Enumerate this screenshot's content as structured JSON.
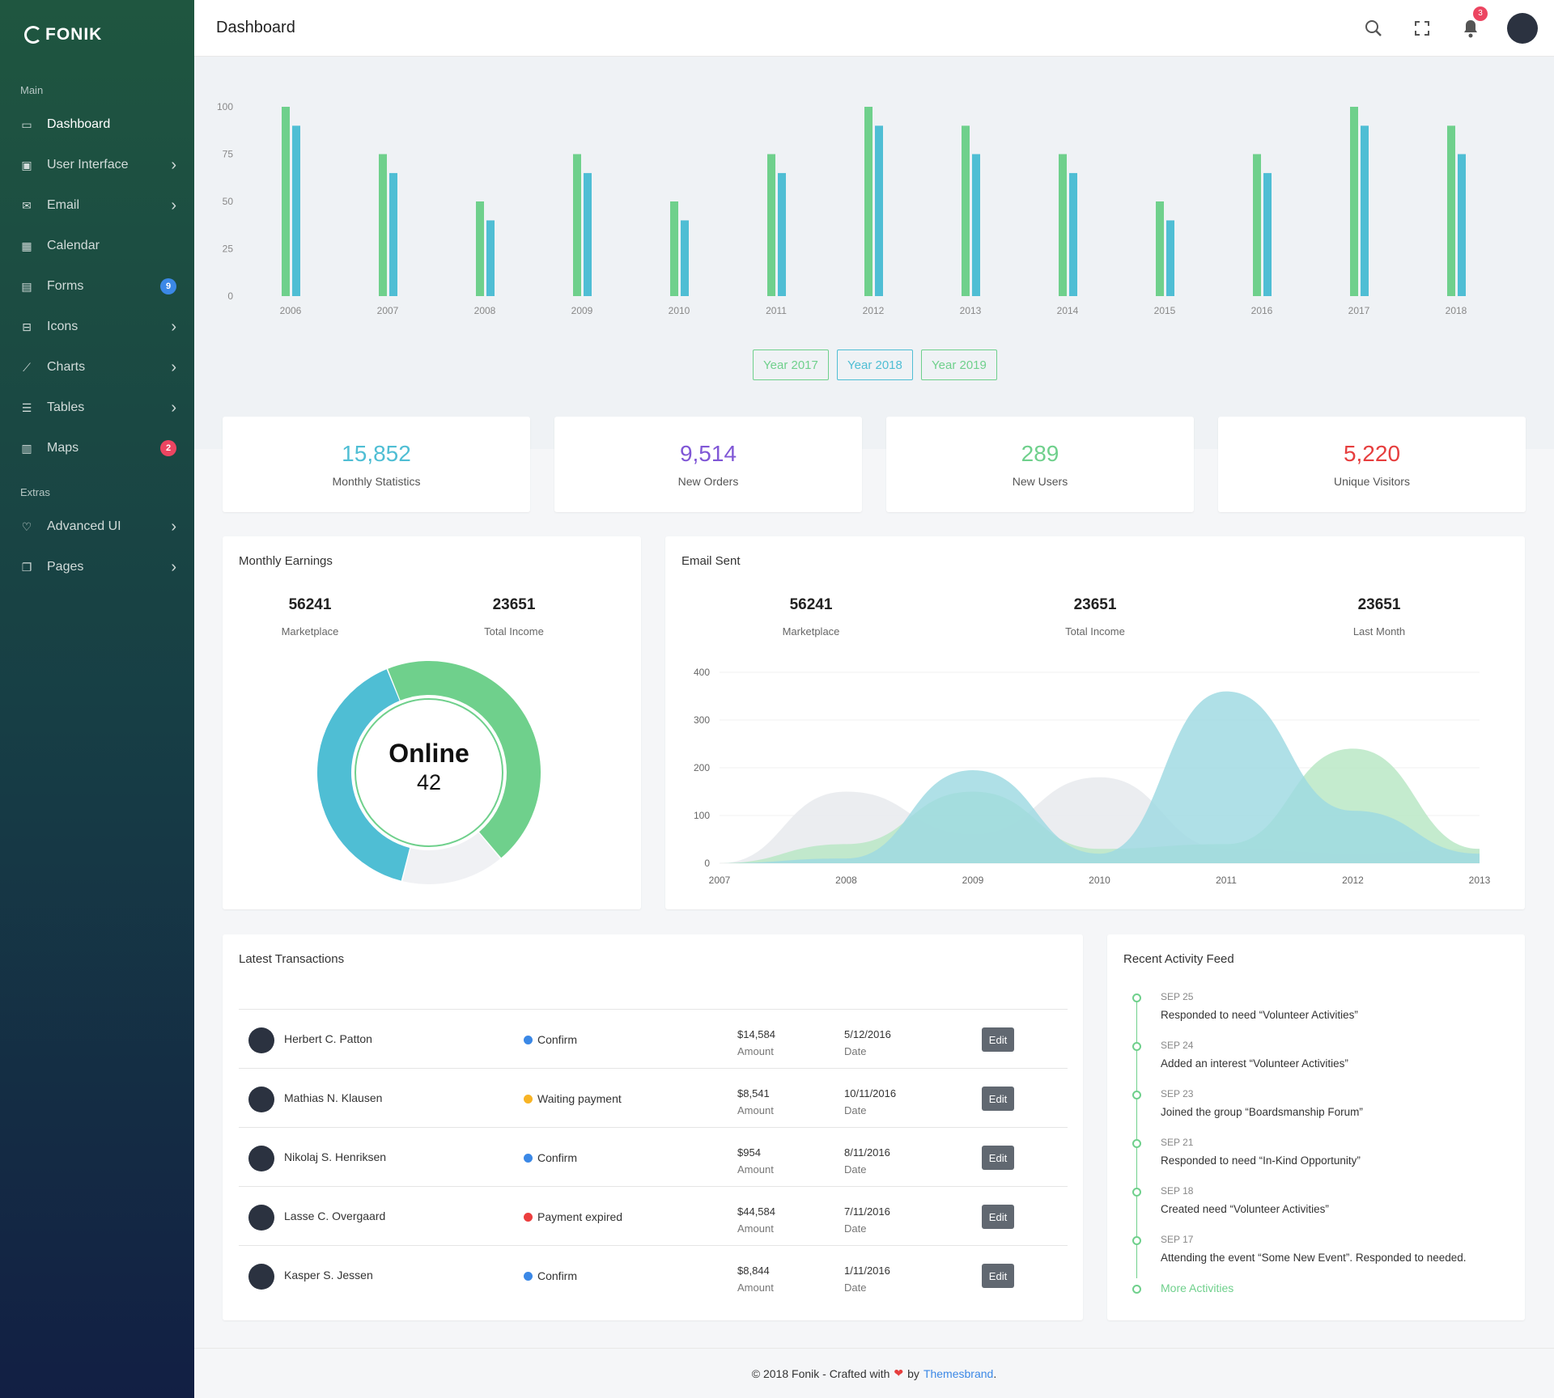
{
  "brand": {
    "name": "FONIK"
  },
  "sidebar": {
    "main_title": "Main",
    "extras_title": "Extras",
    "items": [
      {
        "label": "Dashboard",
        "icon": "monitor-icon",
        "active": true
      },
      {
        "label": "User Interface",
        "icon": "briefcase-icon",
        "chevron": true
      },
      {
        "label": "Email",
        "icon": "mail-icon",
        "chevron": true
      },
      {
        "label": "Calendar",
        "icon": "calendar-icon"
      },
      {
        "label": "Forms",
        "icon": "file-icon",
        "badge": "9",
        "badge_color": "#3b88e6"
      },
      {
        "label": "Icons",
        "icon": "archive-icon",
        "chevron": true
      },
      {
        "label": "Charts",
        "icon": "chart-icon",
        "chevron": true
      },
      {
        "label": "Tables",
        "icon": "list-icon",
        "chevron": true
      },
      {
        "label": "Maps",
        "icon": "map-icon",
        "badge": "2",
        "badge_color": "#ec4561"
      }
    ],
    "extras": [
      {
        "label": "Advanced UI",
        "icon": "heart-icon",
        "chevron": true
      },
      {
        "label": "Pages",
        "icon": "pages-icon",
        "chevron": true
      }
    ]
  },
  "header": {
    "title": "Dashboard",
    "notification_count": "3"
  },
  "chart_data": [
    {
      "type": "bar",
      "categories": [
        "2006",
        "2007",
        "2008",
        "2009",
        "2010",
        "2011",
        "2012",
        "2013",
        "2014",
        "2015",
        "2016",
        "2017",
        "2018"
      ],
      "series": [
        {
          "color": "#6fd08c",
          "values": [
            100,
            75,
            50,
            75,
            50,
            75,
            100,
            90,
            75,
            50,
            75,
            100,
            90
          ]
        },
        {
          "color": "#4fbed4",
          "values": [
            90,
            65,
            40,
            65,
            40,
            65,
            90,
            75,
            65,
            40,
            65,
            90,
            75
          ]
        }
      ],
      "yticks": [
        "100",
        "75",
        "50",
        "25",
        "0"
      ],
      "ylim": [
        0,
        100
      ]
    },
    {
      "type": "pie",
      "center_label": "Online",
      "center_value": "42",
      "slices": [
        {
          "value": 45,
          "color": "#6fd08c"
        },
        {
          "value": 15,
          "color": "#f0f1f4"
        },
        {
          "value": 40,
          "color": "#4fbed4"
        }
      ]
    },
    {
      "type": "area",
      "x": [
        "2007",
        "2008",
        "2009",
        "2010",
        "2011",
        "2012",
        "2013"
      ],
      "yticks": [
        "400",
        "300",
        "200",
        "100",
        "0"
      ],
      "ylim": [
        0,
        400
      ],
      "series": [
        {
          "color": "#e9ebee",
          "values": [
            0,
            150,
            60,
            180,
            30,
            20,
            30
          ]
        },
        {
          "color": "#b7e6c3",
          "values": [
            0,
            40,
            150,
            30,
            40,
            240,
            30
          ]
        },
        {
          "color": "#9ed9e2",
          "values": [
            0,
            10,
            195,
            20,
            360,
            110,
            20
          ]
        }
      ]
    }
  ],
  "year_buttons": [
    {
      "label": "Year 2017",
      "color": "#6fd08c"
    },
    {
      "label": "Year 2018",
      "color": "#4fbed4"
    },
    {
      "label": "Year 2019",
      "color": "#6fd08c"
    }
  ],
  "stats": [
    {
      "value": "15,852",
      "label": "Monthly Statistics",
      "color": "#4fbed4"
    },
    {
      "value": "9,514",
      "label": "New Orders",
      "color": "#8057d6"
    },
    {
      "value": "289",
      "label": "New Users",
      "color": "#6fd08c"
    },
    {
      "value": "5,220",
      "label": "Unique Visitors",
      "color": "#e63e3e"
    }
  ],
  "earnings": {
    "title": "Monthly Earnings",
    "kpis": [
      {
        "value": "56241",
        "label": "Marketplace"
      },
      {
        "value": "23651",
        "label": "Total Income"
      }
    ]
  },
  "email": {
    "title": "Email Sent",
    "kpis": [
      {
        "value": "56241",
        "label": "Marketplace"
      },
      {
        "value": "23651",
        "label": "Total Income"
      },
      {
        "value": "23651",
        "label": "Last Month"
      }
    ]
  },
  "transactions": {
    "title": "Latest Transactions",
    "amount_label": "Amount",
    "date_label": "Date",
    "edit_label": "Edit",
    "rows": [
      {
        "name": "Herbert C. Patton",
        "status": "Confirm",
        "status_color": "#3b88e6",
        "amount": "$14,584",
        "date": "5/12/2016"
      },
      {
        "name": "Mathias N. Klausen",
        "status": "Waiting payment",
        "status_color": "#f8b425",
        "amount": "$8,541",
        "date": "10/11/2016"
      },
      {
        "name": "Nikolaj S. Henriksen",
        "status": "Confirm",
        "status_color": "#3b88e6",
        "amount": "$954",
        "date": "8/11/2016"
      },
      {
        "name": "Lasse C. Overgaard",
        "status": "Payment expired",
        "status_color": "#ec3e3e",
        "amount": "$44,584",
        "date": "7/11/2016"
      },
      {
        "name": "Kasper S. Jessen",
        "status": "Confirm",
        "status_color": "#3b88e6",
        "amount": "$8,844",
        "date": "1/11/2016"
      }
    ]
  },
  "feed": {
    "title": "Recent Activity Feed",
    "items": [
      {
        "date": "SEP 25",
        "text": "Responded to need “Volunteer Activities”"
      },
      {
        "date": "SEP 24",
        "text": "Added an interest “Volunteer Activities”"
      },
      {
        "date": "SEP 23",
        "text": "Joined the group “Boardsmanship Forum”"
      },
      {
        "date": "SEP 21",
        "text": "Responded to need “In-Kind Opportunity”"
      },
      {
        "date": "SEP 18",
        "text": "Created need “Volunteer Activities”"
      },
      {
        "date": "SEP 17",
        "text": "Attending the event “Some New Event”. Responded to needed."
      }
    ],
    "more": "More Activities"
  },
  "footer": {
    "prefix": "© 2018 Fonik - Crafted with",
    "by": "by",
    "link": "Themesbrand",
    "suffix": "."
  }
}
